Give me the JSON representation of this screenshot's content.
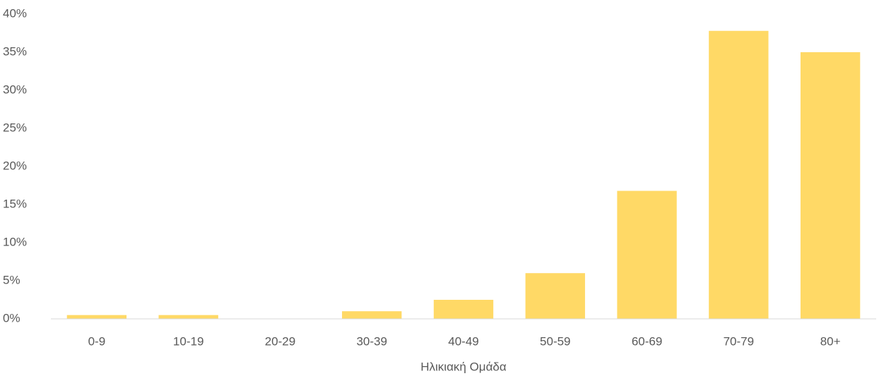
{
  "chart_data": {
    "type": "bar",
    "x_label": "Ηλικιακή Ομάδα",
    "categories": [
      "0-9",
      "10-19",
      "20-29",
      "30-39",
      "40-49",
      "50-59",
      "60-69",
      "70-79",
      "80+"
    ],
    "values": [
      0.5,
      0.5,
      0,
      1,
      2.5,
      6,
      16.8,
      37.8,
      35
    ],
    "color": "#ffd966",
    "ylim": [
      0,
      40
    ],
    "yticks": [
      {
        "value": 0,
        "label": "0%"
      },
      {
        "value": 5,
        "label": "5%"
      },
      {
        "value": 10,
        "label": "10%"
      },
      {
        "value": 15,
        "label": "15%"
      },
      {
        "value": 20,
        "label": "20%"
      },
      {
        "value": 25,
        "label": "25%"
      },
      {
        "value": 30,
        "label": "30%"
      },
      {
        "value": 35,
        "label": "35%"
      },
      {
        "value": 40,
        "label": "40%"
      }
    ],
    "grid": false
  }
}
